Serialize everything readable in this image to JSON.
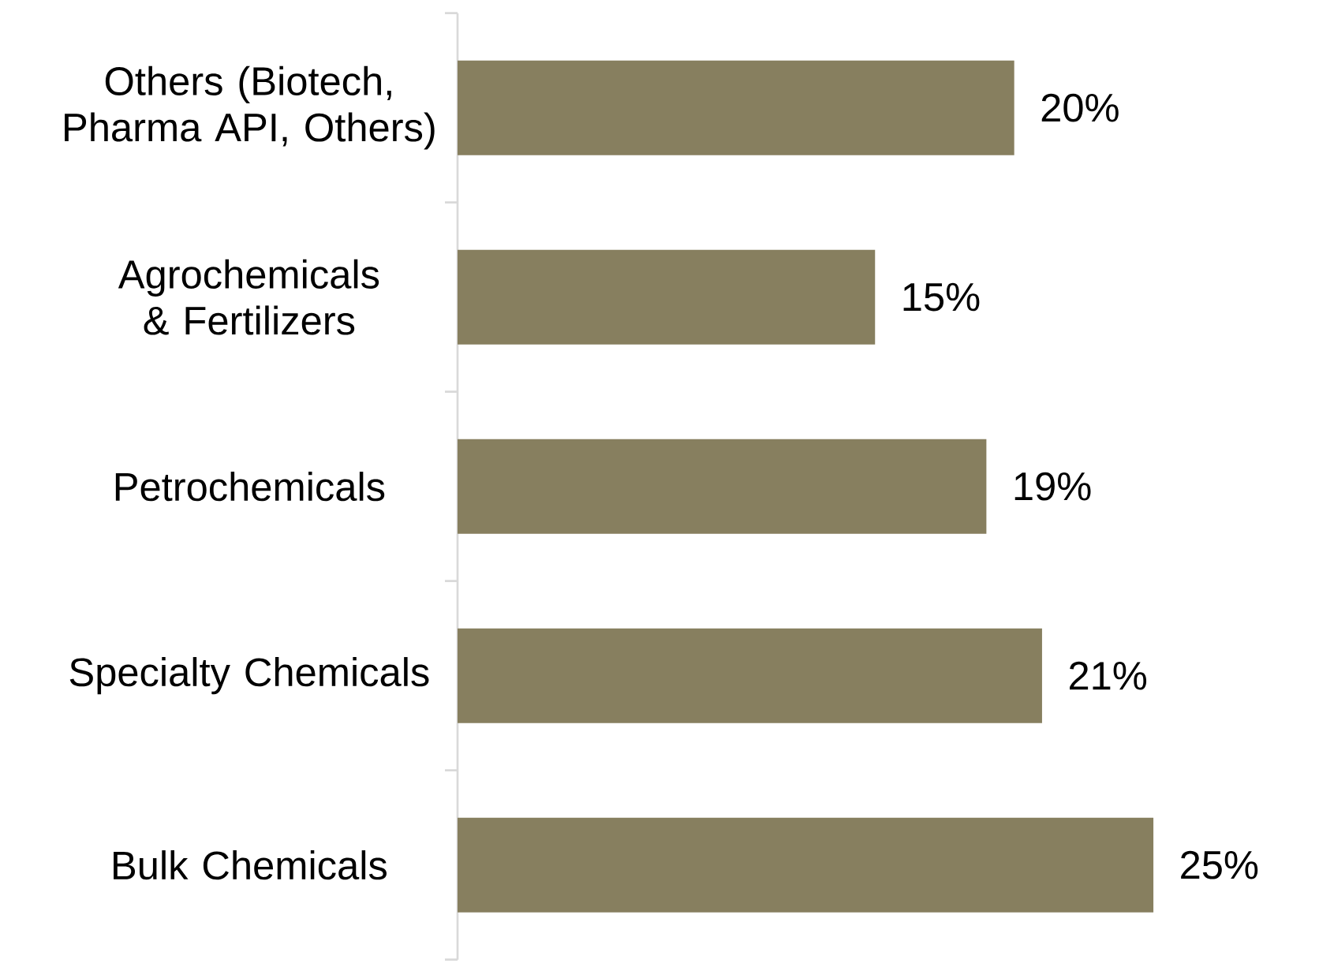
{
  "chart_data": {
    "type": "bar",
    "orientation": "horizontal",
    "categories": [
      "Others (Biotech, Pharma API, Others)",
      "Agrochemicals & Fertilizers",
      "Petrochemicals",
      "Specialty Chemicals",
      "Bulk Chemicals"
    ],
    "values": [
      20,
      15,
      19,
      21,
      25
    ],
    "value_labels": [
      "20%",
      "15%",
      "19%",
      "21%",
      "25%"
    ],
    "color": "#877f5f"
  }
}
